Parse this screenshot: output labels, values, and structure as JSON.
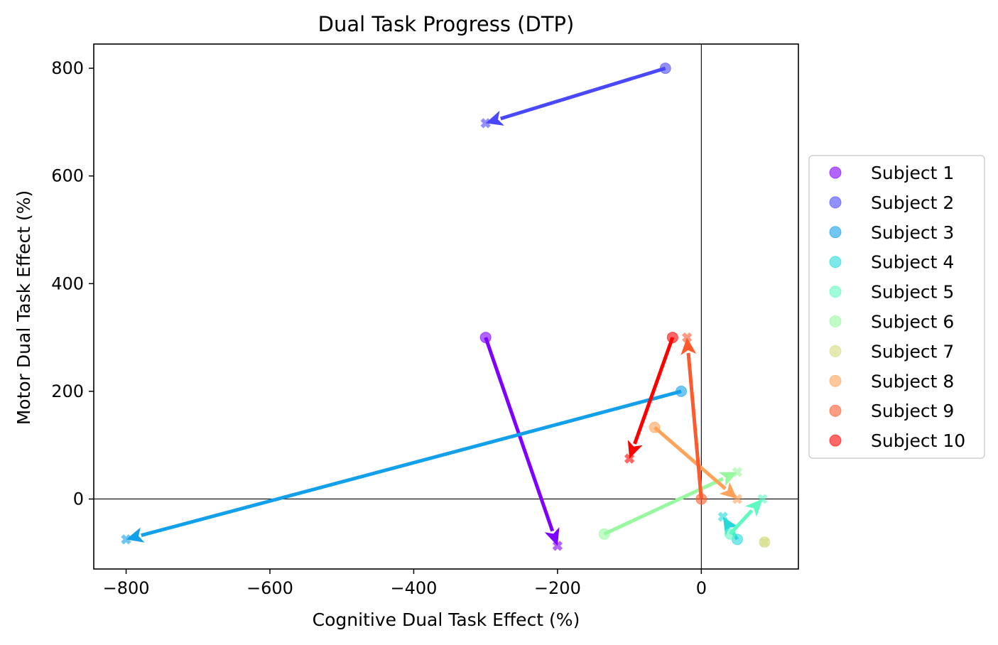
{
  "chart_data": {
    "type": "scatter",
    "title": "Dual Task Progress (DTP)",
    "xlabel": "Cognitive Dual Task Effect (%)",
    "ylabel": "Motor Dual Task Effect (%)",
    "xlim": [
      -845,
      135
    ],
    "ylim": [
      -130,
      845
    ],
    "xticks": [
      -800,
      -600,
      -400,
      -200,
      0
    ],
    "xtick_labels": [
      "−800",
      "−600",
      "−400",
      "−200",
      "0"
    ],
    "yticks": [
      0,
      200,
      400,
      600,
      800
    ],
    "ytick_labels": [
      "0",
      "200",
      "400",
      "600",
      "800"
    ],
    "reference_lines": {
      "x": 0,
      "y": 0
    },
    "legend_position": "center-right outside plot",
    "marker_start": "circle",
    "marker_end": "x",
    "series": [
      {
        "name": "Subject 1",
        "color": "#8000ff",
        "start": [
          -300,
          300
        ],
        "end": [
          -200,
          -87
        ]
      },
      {
        "name": "Subject 2",
        "color": "#4a48fb",
        "start": [
          -50,
          800
        ],
        "end": [
          -300,
          698
        ]
      },
      {
        "name": "Subject 3",
        "color": "#12a0ea",
        "start": [
          -28,
          200
        ],
        "end": [
          -800,
          -75
        ]
      },
      {
        "name": "Subject 4",
        "color": "#26d8da",
        "start": [
          50,
          -75
        ],
        "end": [
          30,
          -33
        ]
      },
      {
        "name": "Subject 5",
        "color": "#5efac2",
        "start": [
          40,
          -65
        ],
        "end": [
          85,
          0
        ]
      },
      {
        "name": "Subject 6",
        "color": "#98f89f",
        "start": [
          -135,
          -65
        ],
        "end": [
          50,
          50
        ]
      },
      {
        "name": "Subject 7",
        "color": "#d4dc7f",
        "start": [
          88,
          -80
        ],
        "end": [
          88,
          -80
        ]
      },
      {
        "name": "Subject 8",
        "color": "#ffa35a",
        "start": [
          -65,
          133
        ],
        "end": [
          50,
          0
        ]
      },
      {
        "name": "Subject 9",
        "color": "#ff5a2e",
        "start": [
          0,
          0
        ],
        "end": [
          -20,
          300
        ]
      },
      {
        "name": "Subject 10",
        "color": "#ff0000",
        "start": [
          -40,
          300
        ],
        "end": [
          -100,
          75
        ]
      }
    ]
  }
}
